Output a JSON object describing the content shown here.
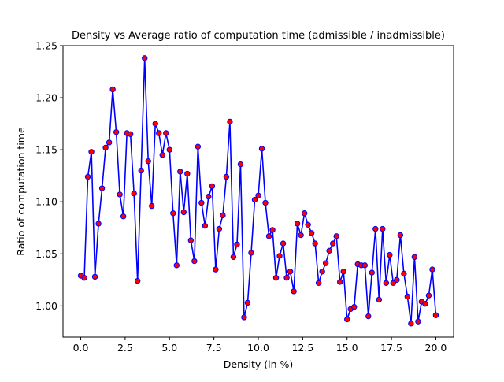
{
  "chart_data": {
    "type": "line",
    "title": "Density vs Average ratio of computation time (admissible / inadmissible)",
    "xlabel": "Density (in %)",
    "ylabel": "Ratio of computation time",
    "xlim": [
      -1.0,
      21.0
    ],
    "ylim": [
      0.97,
      1.25
    ],
    "xticks": [
      0.0,
      2.5,
      5.0,
      7.5,
      10.0,
      12.5,
      15.0,
      17.5,
      20.0
    ],
    "xtick_labels": [
      "0.0",
      "2.5",
      "5.0",
      "7.5",
      "10.0",
      "12.5",
      "15.0",
      "17.5",
      "20.0"
    ],
    "yticks": [
      1.0,
      1.05,
      1.1,
      1.15,
      1.2,
      1.25
    ],
    "ytick_labels": [
      "1.00",
      "1.05",
      "1.10",
      "1.15",
      "1.20",
      "1.25"
    ],
    "grid": false,
    "legend": "none",
    "series": [
      {
        "line_color": "#0000ff",
        "marker_face": "#ff0000",
        "marker_edge": "#0000ff",
        "x": [
          0.0,
          0.2,
          0.4,
          0.6,
          0.8,
          1.0,
          1.2,
          1.4,
          1.6,
          1.8,
          2.0,
          2.2,
          2.4,
          2.6,
          2.8,
          3.0,
          3.2,
          3.4,
          3.6,
          3.8,
          4.0,
          4.2,
          4.4,
          4.6,
          4.8,
          5.0,
          5.2,
          5.4,
          5.6,
          5.8,
          6.0,
          6.2,
          6.4,
          6.6,
          6.8,
          7.0,
          7.2,
          7.4,
          7.6,
          7.8,
          8.0,
          8.2,
          8.4,
          8.6,
          8.8,
          9.0,
          9.2,
          9.4,
          9.6,
          9.8,
          10.0,
          10.2,
          10.4,
          10.6,
          10.8,
          11.0,
          11.2,
          11.4,
          11.6,
          11.8,
          12.0,
          12.2,
          12.4,
          12.6,
          12.8,
          13.0,
          13.2,
          13.4,
          13.6,
          13.8,
          14.0,
          14.2,
          14.4,
          14.6,
          14.8,
          15.0,
          15.2,
          15.4,
          15.6,
          15.8,
          16.0,
          16.2,
          16.4,
          16.6,
          16.8,
          17.0,
          17.2,
          17.4,
          17.6,
          17.8,
          18.0,
          18.2,
          18.4,
          18.6,
          18.8,
          19.0,
          19.2,
          19.4,
          19.6,
          19.8,
          20.0
        ],
        "y": [
          1.029,
          1.027,
          1.124,
          1.148,
          1.028,
          1.079,
          1.113,
          1.152,
          1.157,
          1.208,
          1.167,
          1.107,
          1.086,
          1.166,
          1.165,
          1.108,
          1.024,
          1.13,
          1.238,
          1.139,
          1.096,
          1.175,
          1.166,
          1.145,
          1.166,
          1.15,
          1.089,
          1.039,
          1.129,
          1.09,
          1.127,
          1.063,
          1.043,
          1.153,
          1.099,
          1.077,
          1.105,
          1.115,
          1.035,
          1.074,
          1.087,
          1.124,
          1.177,
          1.047,
          1.059,
          1.136,
          0.989,
          1.003,
          1.051,
          1.102,
          1.106,
          1.151,
          1.099,
          1.067,
          1.073,
          1.027,
          1.048,
          1.06,
          1.027,
          1.033,
          1.014,
          1.079,
          1.068,
          1.089,
          1.078,
          1.07,
          1.06,
          1.022,
          1.033,
          1.041,
          1.053,
          1.06,
          1.067,
          1.023,
          1.033,
          0.987,
          0.997,
          0.999,
          1.04,
          1.039,
          1.039,
          0.99,
          1.032,
          1.074,
          1.006,
          1.074,
          1.022,
          1.049,
          1.022,
          1.025,
          1.068,
          1.031,
          1.009,
          0.983,
          1.047,
          0.985,
          1.004,
          1.002,
          1.01,
          1.035,
          0.991
        ]
      }
    ]
  }
}
